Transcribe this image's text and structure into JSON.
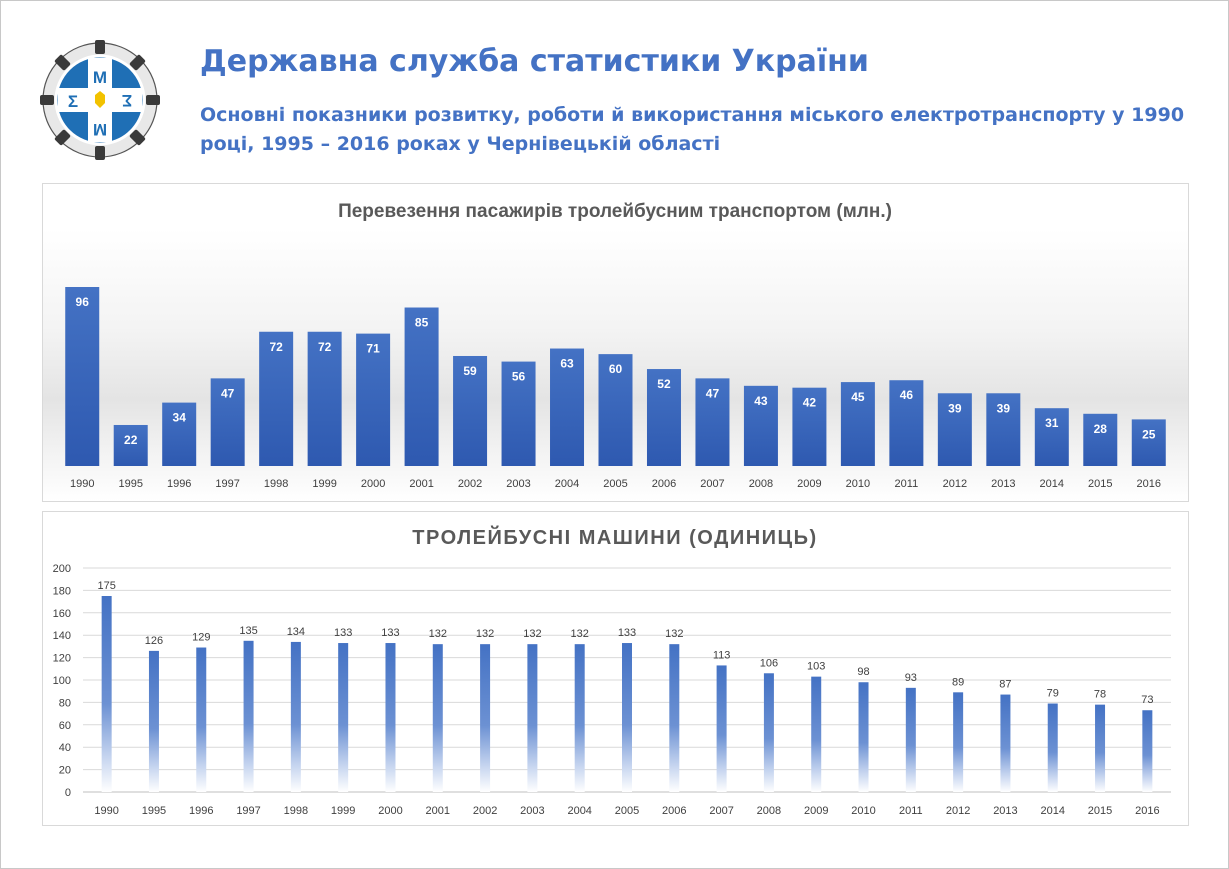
{
  "header": {
    "title": "Державна служба статистики України",
    "subtitle": "Основні показники розвитку, роботи й використання міського електротранспорту у 1990 році, 1995 – 2016 роках у Чернівецькій області"
  },
  "colors": {
    "accent": "#4472c4",
    "bar_dark": "#2e59b0",
    "title_gray": "#595959"
  },
  "chart_data": [
    {
      "type": "bar",
      "title": "Перевезення пасажирів тролейбусним транспортом (млн.)",
      "categories": [
        "1990",
        "1995",
        "1996",
        "1997",
        "1998",
        "1999",
        "2000",
        "2001",
        "2002",
        "2003",
        "2004",
        "2005",
        "2006",
        "2007",
        "2008",
        "2009",
        "2010",
        "2011",
        "2012",
        "2013",
        "2014",
        "2015",
        "2016"
      ],
      "values": [
        96,
        22,
        34,
        47,
        72,
        72,
        71,
        85,
        59,
        56,
        63,
        60,
        52,
        47,
        43,
        42,
        45,
        46,
        39,
        39,
        31,
        28,
        25
      ],
      "ylim": [
        0,
        96
      ],
      "grid": false,
      "data_labels": true
    },
    {
      "type": "bar",
      "title": "ТРОЛЕЙБУСНІ МАШИНИ (ОДИНИЦЬ)",
      "categories": [
        "1990",
        "1995",
        "1996",
        "1997",
        "1998",
        "1999",
        "2000",
        "2001",
        "2002",
        "2003",
        "2004",
        "2005",
        "2006",
        "2007",
        "2008",
        "2009",
        "2010",
        "2011",
        "2012",
        "2013",
        "2014",
        "2015",
        "2016"
      ],
      "values": [
        175,
        126,
        129,
        135,
        134,
        133,
        133,
        132,
        132,
        132,
        132,
        133,
        132,
        113,
        106,
        103,
        98,
        93,
        89,
        87,
        79,
        78,
        73
      ],
      "ylim": [
        0,
        200
      ],
      "yticks": [
        0,
        20,
        40,
        60,
        80,
        100,
        120,
        140,
        160,
        180,
        200
      ],
      "grid": true,
      "data_labels": true
    }
  ]
}
